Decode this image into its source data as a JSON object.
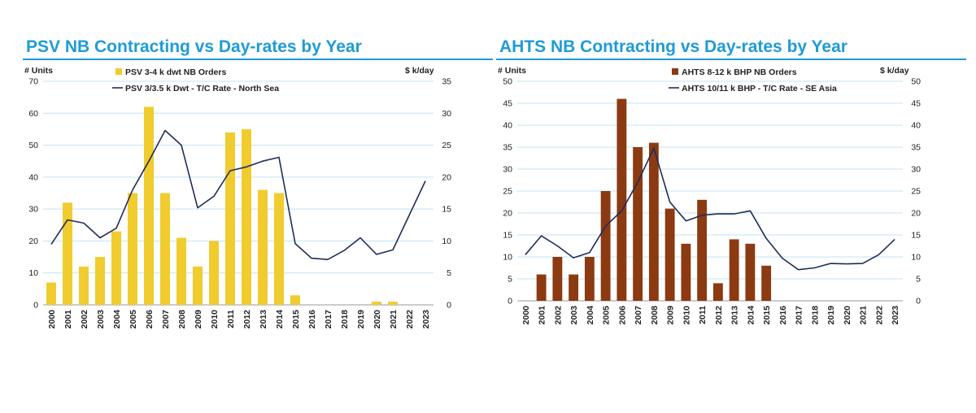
{
  "chart_data": [
    {
      "type": "bar+line",
      "title": "PSV NB Contracting vs Day-rates by Year",
      "ylabel_left": "# Units",
      "ylabel_right": "$ k/day",
      "ylim_left": [
        0,
        70
      ],
      "ylim_right": [
        0,
        35
      ],
      "yticks_left": [
        0,
        10,
        20,
        30,
        40,
        50,
        60,
        70
      ],
      "yticks_right": [
        0,
        5,
        10,
        15,
        20,
        25,
        30,
        35
      ],
      "grid": true,
      "categories": [
        "2000",
        "2001",
        "2002",
        "2003",
        "2004",
        "2005",
        "2006",
        "2007",
        "2008",
        "2009",
        "2010",
        "2011",
        "2012",
        "2013",
        "2014",
        "2015",
        "2016",
        "2017",
        "2018",
        "2019",
        "2020",
        "2021",
        "2022",
        "2023"
      ],
      "bar_series": {
        "name": "PSV 3-4 k dwt NB Orders",
        "color": "#f0cc2e",
        "axis": "left",
        "values": [
          7,
          32,
          12,
          15,
          23,
          35,
          62,
          35,
          21,
          12,
          20,
          54,
          55,
          36,
          35,
          3,
          0,
          0,
          0,
          0,
          1,
          1,
          0,
          0
        ]
      },
      "line_series": {
        "name": "PSV 3/3.5 k Dwt - T/C Rate - North Sea",
        "color": "#1f2d5a",
        "axis": "right",
        "values": [
          9.5,
          13.3,
          12.8,
          10.5,
          12,
          18,
          22.5,
          27.3,
          25,
          15.2,
          17,
          21,
          21.6,
          22.5,
          23.1,
          9.6,
          7.3,
          7.1,
          8.5,
          10.5,
          7.9,
          8.6,
          14,
          19.4
        ]
      },
      "legend_position": "top-center"
    },
    {
      "type": "bar+line",
      "title": "AHTS NB Contracting vs Day-rates by Year",
      "ylabel_left": "# Units",
      "ylabel_right": "$ k/day",
      "ylim_left": [
        0,
        50
      ],
      "ylim_right": [
        0,
        50
      ],
      "yticks_left": [
        0,
        5,
        10,
        15,
        20,
        25,
        30,
        35,
        40,
        45,
        50
      ],
      "yticks_right": [
        0,
        5,
        10,
        15,
        20,
        25,
        30,
        35,
        40,
        45,
        50
      ],
      "grid": true,
      "categories": [
        "2000",
        "2001",
        "2002",
        "2003",
        "2004",
        "2005",
        "2006",
        "2007",
        "2008",
        "2009",
        "2010",
        "2011",
        "2012",
        "2013",
        "2014",
        "2015",
        "2016",
        "2017",
        "2018",
        "2019",
        "2020",
        "2021",
        "2022",
        "2023"
      ],
      "bar_series": {
        "name": "AHTS 8-12 k BHP NB Orders",
        "color": "#8b3a12",
        "axis": "left",
        "values": [
          0,
          6,
          10,
          6,
          10,
          25,
          46,
          35,
          36,
          21,
          13,
          23,
          4,
          14,
          13,
          8,
          0,
          0,
          0,
          0,
          0,
          0,
          0,
          0
        ]
      },
      "line_series": {
        "name": "AHTS 10/11 k BHP - T/C Rate - SE Asia",
        "color": "#1f2d5a",
        "axis": "right",
        "values": [
          10.5,
          14.8,
          12.5,
          9.8,
          11,
          17,
          20.5,
          27,
          34.8,
          22.5,
          18.2,
          19.5,
          19.8,
          19.8,
          20.5,
          14.2,
          9.7,
          7.1,
          7.5,
          8.5,
          8.4,
          8.5,
          10.5,
          14
        ]
      },
      "legend_position": "top-center"
    }
  ]
}
